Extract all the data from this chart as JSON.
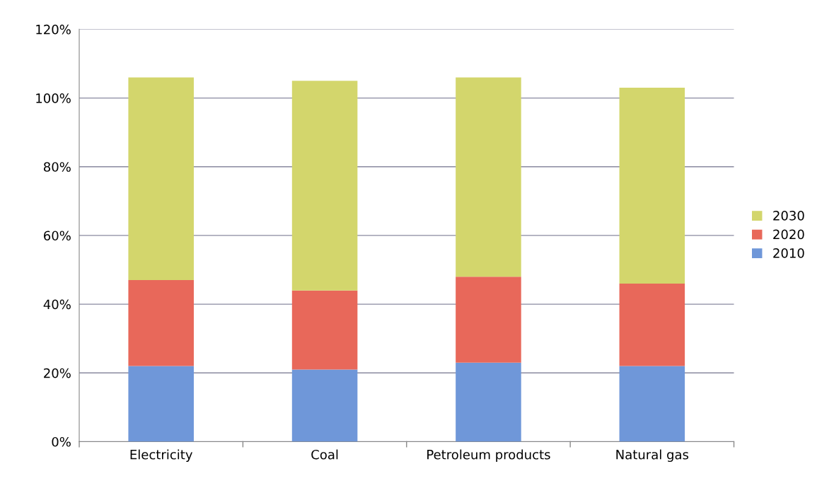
{
  "chart_data": {
    "type": "bar",
    "stacked": true,
    "categories": [
      "Electricity",
      "Coal",
      "Petroleum products",
      "Natural gas"
    ],
    "series": [
      {
        "name": "2010",
        "color": "#6f97d9",
        "values": [
          22,
          21,
          23,
          22
        ]
      },
      {
        "name": "2020",
        "color": "#e8685a",
        "values": [
          25,
          23,
          25,
          24
        ]
      },
      {
        "name": "2030",
        "color": "#d3d66c",
        "values": [
          59,
          61,
          58,
          57
        ]
      }
    ],
    "ylim": [
      0,
      120
    ],
    "yticks": [
      {
        "value": 0,
        "label": "0%"
      },
      {
        "value": 20,
        "label": "20%"
      },
      {
        "value": 40,
        "label": "40%"
      },
      {
        "value": 60,
        "label": "60%"
      },
      {
        "value": 80,
        "label": "80%"
      },
      {
        "value": 100,
        "label": "100%"
      },
      {
        "value": 120,
        "label": "120%"
      }
    ],
    "grid": "y",
    "legend": "right"
  }
}
